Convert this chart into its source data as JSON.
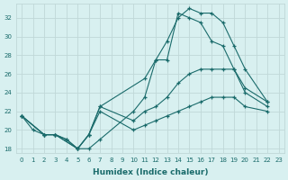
{
  "xlabel": "Humidex (Indice chaleur)",
  "ylabel": "",
  "bg_color": "#d8f0f0",
  "grid_color": "#c0d8d8",
  "line_color": "#1a6b6b",
  "xlim": [
    -0.5,
    23.5
  ],
  "ylim": [
    17.5,
    33.5
  ],
  "xticks": [
    0,
    1,
    2,
    3,
    4,
    5,
    6,
    7,
    8,
    9,
    10,
    11,
    12,
    13,
    14,
    15,
    16,
    17,
    18,
    19,
    20,
    21,
    22,
    23
  ],
  "yticks": [
    18,
    20,
    22,
    24,
    26,
    28,
    30,
    32
  ],
  "lines": [
    {
      "x": [
        0,
        1,
        2,
        3,
        4,
        5,
        6,
        7,
        10,
        11,
        12,
        13,
        14,
        15,
        16,
        17,
        18,
        19,
        20,
        22
      ],
      "y": [
        21.5,
        20.0,
        19.5,
        19.5,
        19.0,
        18.0,
        18.0,
        19.0,
        22.0,
        23.5,
        27.5,
        29.5,
        32.0,
        33.0,
        32.5,
        32.5,
        31.5,
        29.0,
        26.5,
        23.0
      ]
    },
    {
      "x": [
        0,
        2,
        3,
        4,
        5,
        6,
        7,
        11,
        12,
        13,
        14,
        15,
        16,
        17,
        18,
        19,
        20,
        22
      ],
      "y": [
        21.5,
        19.5,
        19.5,
        19.0,
        18.0,
        19.5,
        22.5,
        25.5,
        27.5,
        27.5,
        32.5,
        32.0,
        31.5,
        29.5,
        29.0,
        26.5,
        24.0,
        22.5
      ]
    },
    {
      "x": [
        0,
        2,
        3,
        5,
        6,
        7,
        10,
        11,
        12,
        13,
        14,
        15,
        16,
        17,
        18,
        19,
        20,
        22
      ],
      "y": [
        21.5,
        19.5,
        19.5,
        18.0,
        19.5,
        22.5,
        21.0,
        22.0,
        22.5,
        23.5,
        25.0,
        26.0,
        26.5,
        26.5,
        26.5,
        26.5,
        24.5,
        23.0
      ]
    },
    {
      "x": [
        0,
        2,
        3,
        5,
        6,
        7,
        10,
        11,
        12,
        13,
        14,
        15,
        16,
        17,
        18,
        19,
        20,
        22
      ],
      "y": [
        21.5,
        19.5,
        19.5,
        18.0,
        19.5,
        22.0,
        20.0,
        20.5,
        21.0,
        21.5,
        22.0,
        22.5,
        23.0,
        23.5,
        23.5,
        23.5,
        22.5,
        22.0
      ]
    }
  ]
}
